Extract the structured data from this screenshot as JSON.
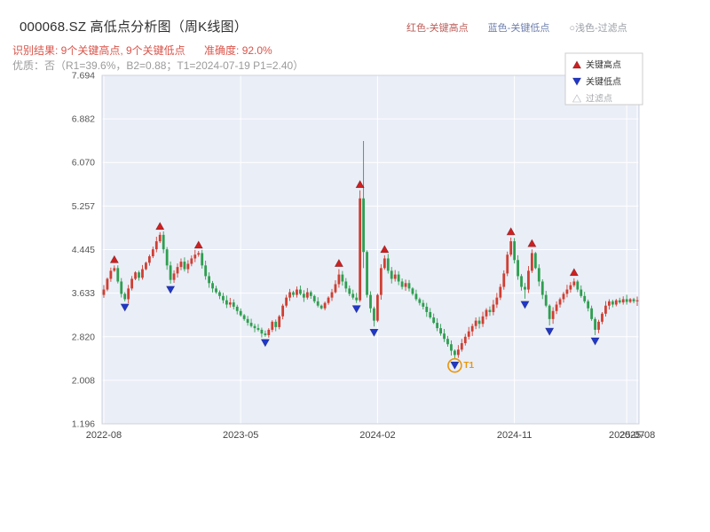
{
  "header": {
    "title": "000068.SZ 高低点分析图（周K线图）",
    "top_legend": [
      {
        "label": "红色-关键高点",
        "color": "#bb5d58"
      },
      {
        "label": "蓝色-关键低点",
        "color": "#6e7fae"
      },
      {
        "label": "○浅色-过滤点",
        "color": "#9a9ea5"
      }
    ],
    "result_line": "识别结果: 9个关键高点, 9个关键低点",
    "accuracy_line": "准确度: 92.0%",
    "quality_line": "优质：否（R1=39.6%，B2=0.88；T1=2024-07-19 P1=2.40）"
  },
  "chart_data": {
    "type": "candlestick",
    "title": "000068.SZ 高低点分析图（周K线图）",
    "xlabel": "",
    "ylabel": "",
    "ylim": [
      1.196,
      7.694
    ],
    "yticks": [
      7.694,
      6.882,
      6.07,
      5.257,
      4.445,
      3.633,
      2.82,
      2.008,
      1.196
    ],
    "xticks": [
      {
        "index": 0,
        "label": "2022-08"
      },
      {
        "index": 39,
        "label": "2023-05"
      },
      {
        "index": 78,
        "label": "2024-02"
      },
      {
        "index": 117,
        "label": "2024-11"
      },
      {
        "index": 149,
        "label": "2025-07"
      },
      {
        "index": 152,
        "label": "2025-08"
      }
    ],
    "first_open": 3.6,
    "closes": [
      3.7,
      3.9,
      4.05,
      4.1,
      3.85,
      3.62,
      3.52,
      3.72,
      3.9,
      4.02,
      3.92,
      4.08,
      4.2,
      4.32,
      4.45,
      4.6,
      4.72,
      4.45,
      4.15,
      3.88,
      4.0,
      4.12,
      4.22,
      4.08,
      4.18,
      4.28,
      4.35,
      4.38,
      4.15,
      3.95,
      3.82,
      3.72,
      3.65,
      3.58,
      3.5,
      3.42,
      3.46,
      3.38,
      3.3,
      3.22,
      3.15,
      3.08,
      3.02,
      2.98,
      2.95,
      2.88,
      2.85,
      2.95,
      3.1,
      3.0,
      3.2,
      3.4,
      3.55,
      3.65,
      3.6,
      3.7,
      3.62,
      3.55,
      3.65,
      3.58,
      3.48,
      3.4,
      3.35,
      3.45,
      3.55,
      3.65,
      3.8,
      3.98,
      3.85,
      3.72,
      3.62,
      3.55,
      3.5,
      5.4,
      4.4,
      3.6,
      3.35,
      3.12,
      3.6,
      4.1,
      4.28,
      4.05,
      3.9,
      3.98,
      3.85,
      3.75,
      3.82,
      3.72,
      3.62,
      3.52,
      3.45,
      3.38,
      3.28,
      3.18,
      3.08,
      2.98,
      2.88,
      2.78,
      2.68,
      2.56,
      2.48,
      2.58,
      2.7,
      2.82,
      2.92,
      3.02,
      3.12,
      3.06,
      3.2,
      3.32,
      3.28,
      3.42,
      3.55,
      3.75,
      4.0,
      4.35,
      4.6,
      4.25,
      3.95,
      3.75,
      3.7,
      4.05,
      4.38,
      4.1,
      3.85,
      3.6,
      3.4,
      3.15,
      3.3,
      3.42,
      3.52,
      3.62,
      3.7,
      3.78,
      3.85,
      3.7,
      3.58,
      3.48,
      3.35,
      3.15,
      2.95,
      3.1,
      3.25,
      3.4,
      3.48,
      3.42,
      3.5,
      3.46,
      3.52,
      3.47,
      3.52,
      3.48,
      3.5
    ],
    "overrides": {
      "3": {
        "high": 4.15
      },
      "6": {
        "low": 3.48
      },
      "16": {
        "high": 4.77
      },
      "19": {
        "low": 3.81
      },
      "27": {
        "high": 4.42
      },
      "46": {
        "low": 2.82
      },
      "67": {
        "high": 4.08
      },
      "72": {
        "low": 3.45
      },
      "73": {
        "high": 5.55
      },
      "74": {
        "high": 6.47,
        "low": 4.1
      },
      "77": {
        "low": 3.01
      },
      "80": {
        "high": 4.34
      },
      "100": {
        "low": 2.4
      },
      "116": {
        "high": 4.67
      },
      "120": {
        "low": 3.53
      },
      "122": {
        "high": 4.45
      },
      "127": {
        "low": 3.03
      },
      "134": {
        "high": 3.91
      },
      "140": {
        "low": 2.85
      }
    },
    "key_highs": [
      [
        3,
        4.15
      ],
      [
        16,
        4.77
      ],
      [
        27,
        4.42
      ],
      [
        67,
        4.08
      ],
      [
        73,
        5.55
      ],
      [
        80,
        4.34
      ],
      [
        116,
        4.67
      ],
      [
        122,
        4.45
      ],
      [
        134,
        3.91
      ]
    ],
    "key_lows": [
      [
        6,
        3.48
      ],
      [
        19,
        3.81
      ],
      [
        46,
        2.82
      ],
      [
        72,
        3.45
      ],
      [
        77,
        3.01
      ],
      [
        100,
        2.4
      ],
      [
        120,
        3.53
      ],
      [
        127,
        3.03
      ],
      [
        140,
        2.85
      ]
    ],
    "t1": {
      "index": 100,
      "price": 2.4,
      "label": "T1"
    },
    "legend": {
      "high": "关键高点",
      "low": "关键低点",
      "filtered": "过滤点"
    },
    "colors": {
      "up": "#cf3f33",
      "down": "#2e9e50",
      "marker_high": "#d01f1f",
      "marker_low": "#2038c8",
      "filtered": "#b0b4bb",
      "t1": "#e8960c",
      "plot_bg": "#eaeef7",
      "grid": "#ffffff",
      "spine": "#cdd3de"
    }
  }
}
